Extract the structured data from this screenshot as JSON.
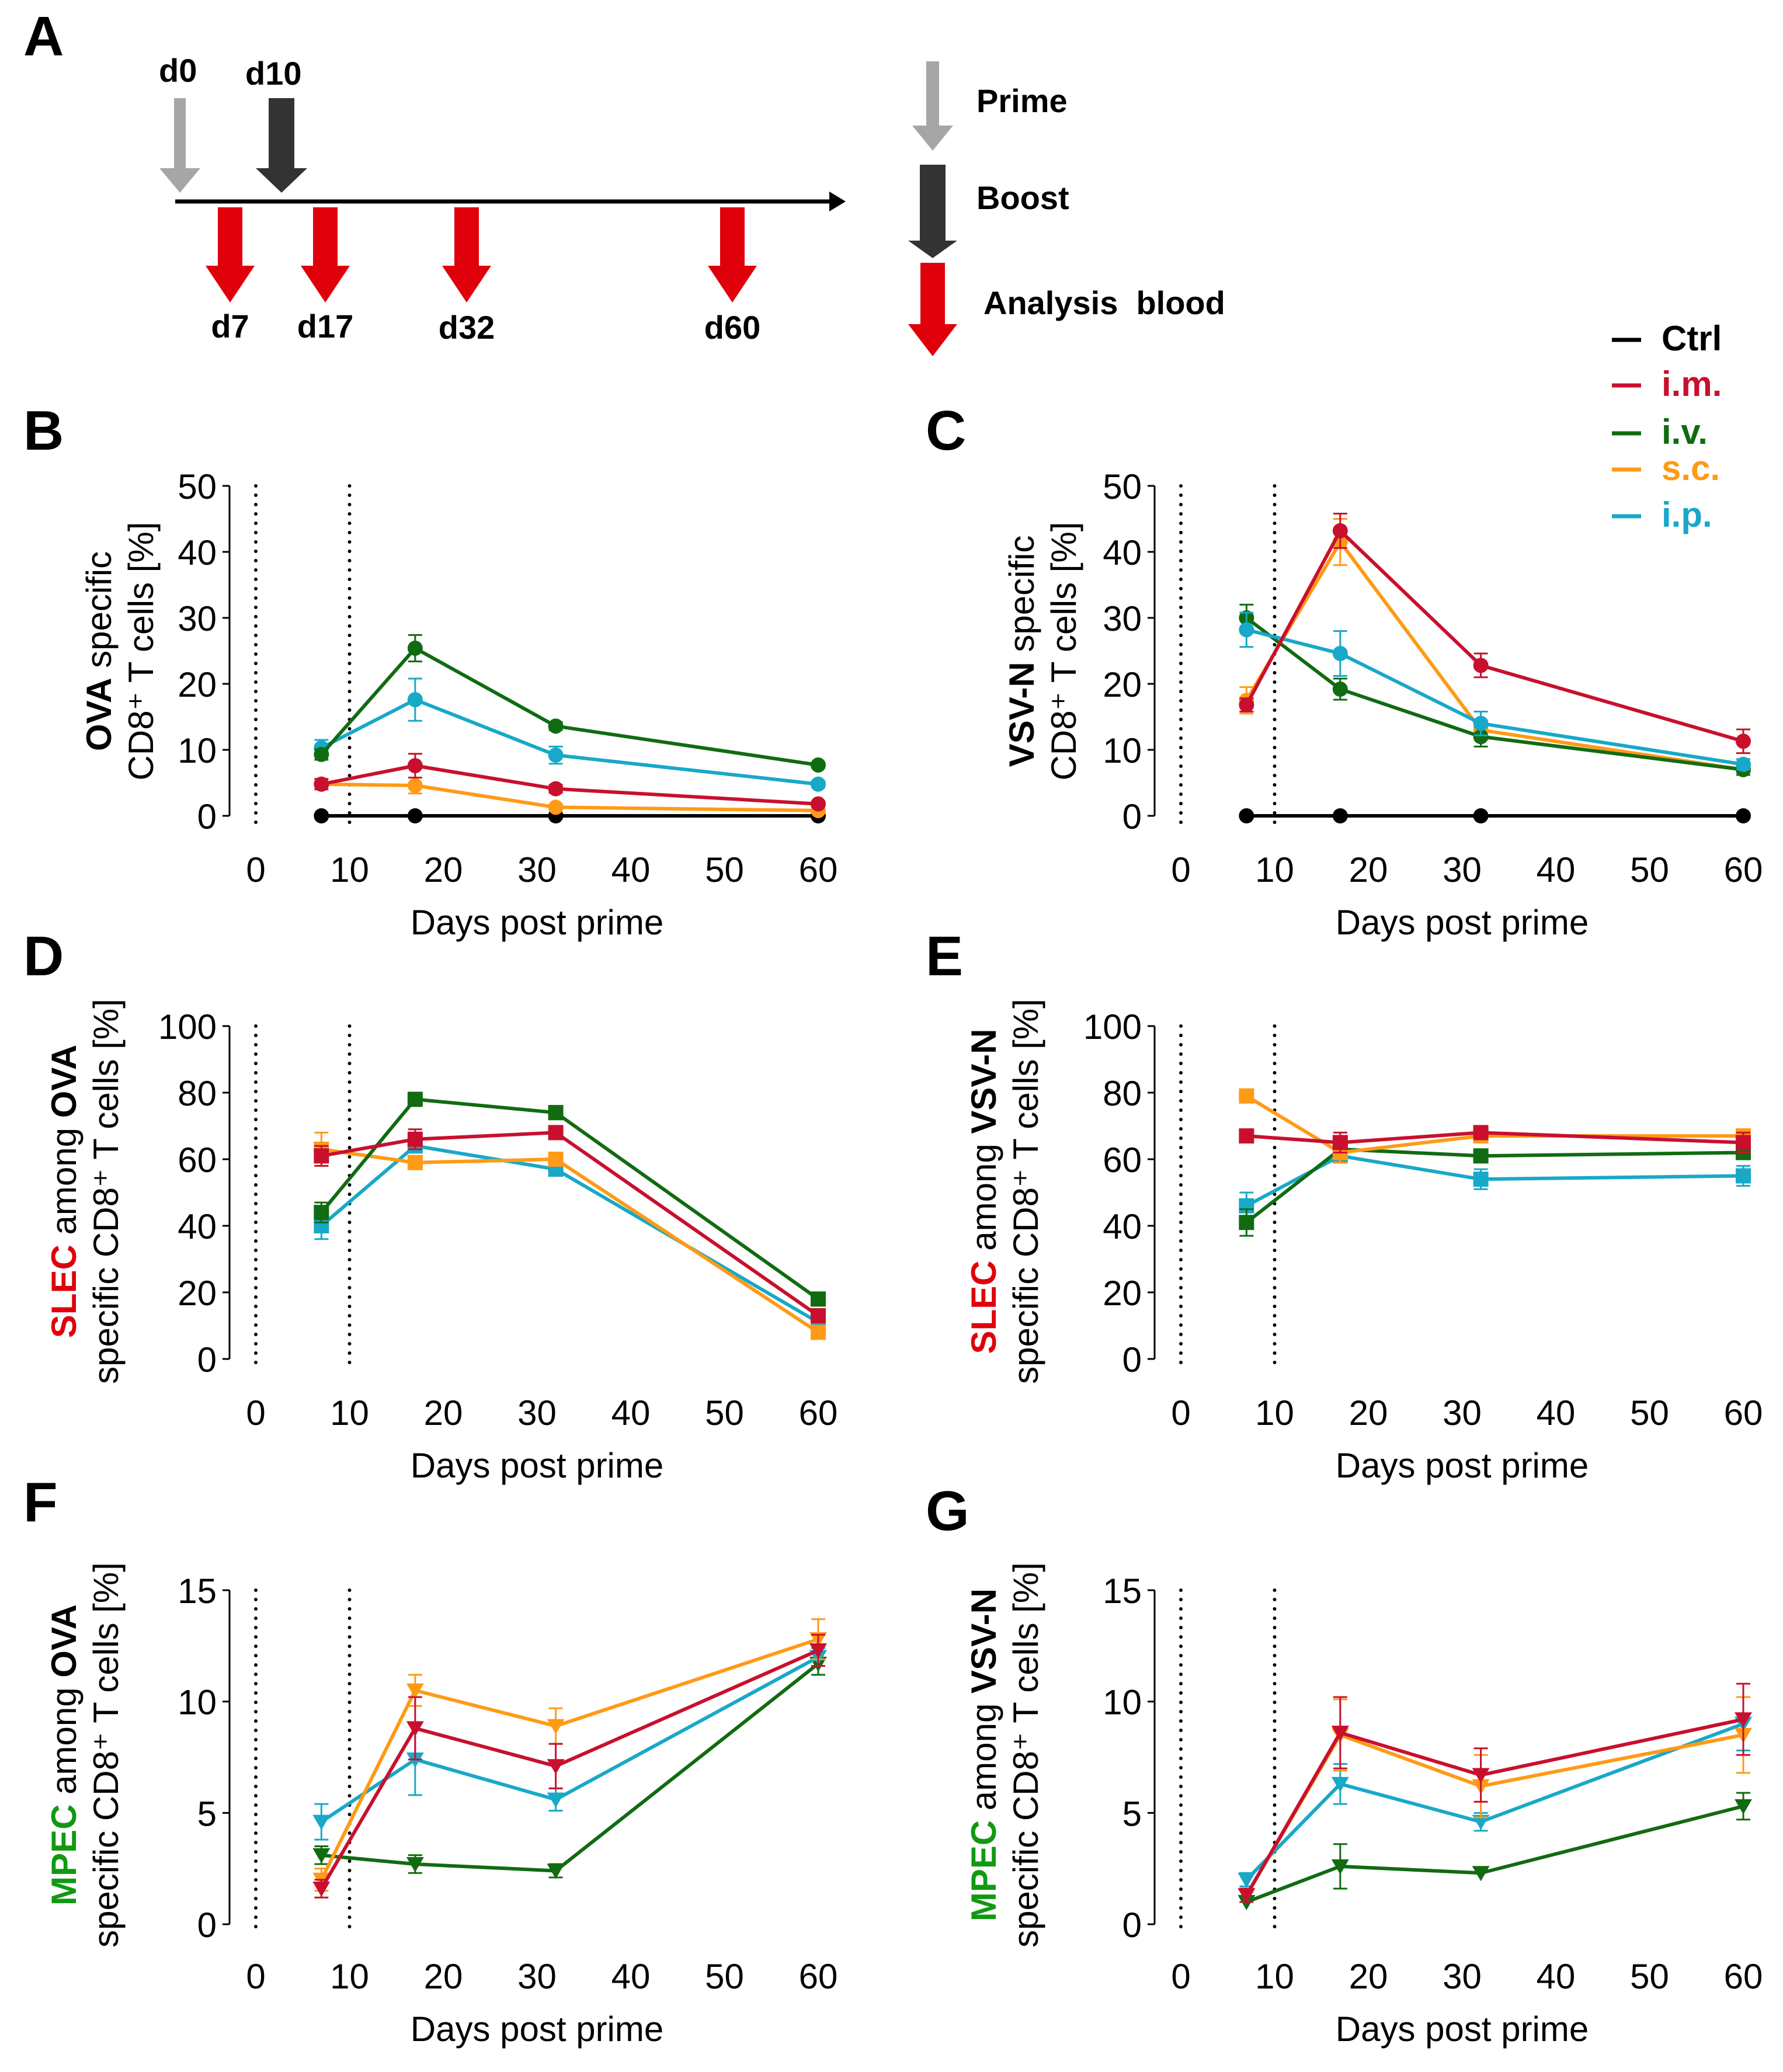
{
  "colors": {
    "ctrl": "#000000",
    "im": "#c8102e",
    "iv": "#116b11",
    "sc": "#ff9a16",
    "ip": "#18a8c8",
    "prime_arrow": "#a6a6a6",
    "boost_arrow": "#333333",
    "analysis_arrow": "#e0000b",
    "slec_text": "#e0000b",
    "mpec_text": "#119911"
  },
  "panel_a": {
    "label": "A",
    "top_days": [
      "d0",
      "d10"
    ],
    "bottom_days": [
      "d7",
      "d17",
      "d32",
      "d60"
    ],
    "legend": {
      "prime": "Prime",
      "boost": "Boost",
      "analysis": "Analysis  blood"
    }
  },
  "legend": {
    "items": [
      {
        "key": "ctrl",
        "label": "Ctrl"
      },
      {
        "key": "im",
        "label": "i.m."
      },
      {
        "key": "iv",
        "label": "i.v."
      },
      {
        "key": "sc",
        "label": "s.c."
      },
      {
        "key": "ip",
        "label": "i.p."
      }
    ]
  },
  "chart_data": [
    {
      "panel": "B",
      "type": "line",
      "marker": "circle",
      "xlabel": "Days post prime",
      "ylabel_bold": "OVA",
      "ylabel_rest": " specific",
      "ylabel_line2": "CD8⁺ T cells [%]",
      "xlim": [
        0,
        60
      ],
      "ylim": [
        0,
        50
      ],
      "xticks": [
        0,
        10,
        20,
        30,
        40,
        50,
        60
      ],
      "yticks": [
        0,
        10,
        20,
        30,
        40,
        50
      ],
      "vlines": [
        0,
        10
      ],
      "x": [
        7,
        17,
        32,
        60
      ],
      "series": [
        {
          "key": "ctrl",
          "name": "Ctrl",
          "values": [
            0,
            0,
            0,
            0
          ],
          "err": [
            0.3,
            0.3,
            0.3,
            0.3
          ]
        },
        {
          "key": "sc",
          "name": "s.c.",
          "values": [
            4.8,
            4.6,
            1.3,
            0.8
          ],
          "err": [
            0.8,
            1.2,
            0.4,
            0.3
          ]
        },
        {
          "key": "im",
          "name": "i.m.",
          "values": [
            4.8,
            7.6,
            4.1,
            1.8
          ],
          "err": [
            0.8,
            1.8,
            0.6,
            0.4
          ]
        },
        {
          "key": "ip",
          "name": "i.p.",
          "values": [
            10.3,
            17.6,
            9.2,
            4.8
          ],
          "err": [
            1.2,
            3.2,
            1.3,
            0.5
          ]
        },
        {
          "key": "iv",
          "name": "i.v.",
          "values": [
            9.3,
            25.4,
            13.6,
            7.7
          ],
          "err": [
            0.8,
            2.0,
            0.6,
            0.4
          ]
        }
      ]
    },
    {
      "panel": "C",
      "type": "line",
      "marker": "circle",
      "xlabel": "Days post prime",
      "ylabel_bold": "VSV-N",
      "ylabel_rest": " specific",
      "ylabel_line2": "CD8⁺ T cells [%]",
      "xlim": [
        0,
        60
      ],
      "ylim": [
        0,
        50
      ],
      "xticks": [
        0,
        10,
        20,
        30,
        40,
        50,
        60
      ],
      "yticks": [
        0,
        10,
        20,
        30,
        40,
        50
      ],
      "vlines": [
        0,
        10
      ],
      "x": [
        7,
        17,
        32,
        60
      ],
      "series": [
        {
          "key": "ctrl",
          "name": "Ctrl",
          "values": [
            0,
            0,
            0,
            0
          ],
          "err": [
            0.3,
            0.3,
            0.3,
            0.3
          ]
        },
        {
          "key": "sc",
          "name": "s.c.",
          "values": [
            17.5,
            41.5,
            13.0,
            7.0
          ],
          "err": [
            2.0,
            3.5,
            1.5,
            0.8
          ]
        },
        {
          "key": "iv",
          "name": "i.v.",
          "values": [
            30.0,
            19.2,
            12.0,
            7.0
          ],
          "err": [
            2.0,
            1.6,
            1.5,
            0.8
          ]
        },
        {
          "key": "ip",
          "name": "i.p.",
          "values": [
            28.2,
            24.6,
            14.0,
            7.8
          ],
          "err": [
            2.6,
            3.4,
            1.8,
            0.8
          ]
        },
        {
          "key": "im",
          "name": "i.m.",
          "values": [
            16.8,
            43.2,
            22.8,
            11.3
          ],
          "err": [
            1.0,
            2.6,
            1.8,
            1.8
          ]
        }
      ]
    },
    {
      "panel": "D",
      "type": "line",
      "marker": "square",
      "xlabel": "Days post prime",
      "ylabel_colored": "SLEC",
      "colored_key": "slec_text",
      "ylabel_mid": " among ",
      "ylabel_bold": "OVA",
      "ylabel_line2": "specific CD8⁺ T cells [%]",
      "xlim": [
        0,
        60
      ],
      "ylim": [
        0,
        100
      ],
      "xticks": [
        0,
        10,
        20,
        30,
        40,
        50,
        60
      ],
      "yticks": [
        0,
        20,
        40,
        60,
        80,
        100
      ],
      "vlines": [
        0,
        10
      ],
      "x": [
        7,
        17,
        32,
        60
      ],
      "series": [
        {
          "key": "ip",
          "name": "i.p.",
          "values": [
            40,
            64,
            57,
            11
          ],
          "err": [
            4,
            2,
            2,
            1
          ]
        },
        {
          "key": "sc",
          "name": "s.c.",
          "values": [
            63,
            59,
            60,
            8
          ],
          "err": [
            5,
            2,
            2,
            1
          ]
        },
        {
          "key": "iv",
          "name": "i.v.",
          "values": [
            44,
            78,
            74,
            18
          ],
          "err": [
            3,
            1,
            2,
            1
          ]
        },
        {
          "key": "im",
          "name": "i.m.",
          "values": [
            61,
            66,
            68,
            13
          ],
          "err": [
            3,
            3,
            2,
            1
          ]
        }
      ]
    },
    {
      "panel": "E",
      "type": "line",
      "marker": "square",
      "xlabel": "Days post prime",
      "ylabel_colored": "SLEC",
      "colored_key": "slec_text",
      "ylabel_mid": " among ",
      "ylabel_bold": "VSV-N",
      "ylabel_line2": "specific CD8⁺ T cells [%]",
      "xlim": [
        0,
        60
      ],
      "ylim": [
        0,
        100
      ],
      "xticks": [
        0,
        10,
        20,
        30,
        40,
        50,
        60
      ],
      "yticks": [
        0,
        20,
        40,
        60,
        80,
        100
      ],
      "vlines": [
        0,
        10
      ],
      "x": [
        7,
        17,
        32,
        60
      ],
      "series": [
        {
          "key": "ip",
          "name": "i.p.",
          "values": [
            46,
            61,
            54,
            55
          ],
          "err": [
            4,
            2,
            3,
            3
          ]
        },
        {
          "key": "iv",
          "name": "i.v.",
          "values": [
            41,
            63,
            61,
            62
          ],
          "err": [
            4,
            2,
            1,
            1
          ]
        },
        {
          "key": "sc",
          "name": "s.c.",
          "values": [
            79,
            62,
            67,
            67
          ],
          "err": [
            2,
            3,
            2,
            2
          ]
        },
        {
          "key": "im",
          "name": "i.m.",
          "values": [
            67,
            65,
            68,
            65
          ],
          "err": [
            1,
            3,
            2,
            3
          ]
        }
      ]
    },
    {
      "panel": "F",
      "type": "line",
      "marker": "triangle-down",
      "xlabel": "Days post prime",
      "ylabel_colored": "MPEC",
      "colored_key": "mpec_text",
      "ylabel_mid": " among ",
      "ylabel_bold": "OVA",
      "ylabel_line2": "specific CD8⁺ T cells [%]",
      "xlim": [
        0,
        60
      ],
      "ylim": [
        0,
        15
      ],
      "xticks": [
        0,
        10,
        20,
        30,
        40,
        50,
        60
      ],
      "yticks": [
        0,
        5,
        10,
        15
      ],
      "vlines": [
        0,
        10
      ],
      "x": [
        7,
        17,
        32,
        60
      ],
      "series": [
        {
          "key": "iv",
          "name": "i.v.",
          "values": [
            3.1,
            2.7,
            2.4,
            11.7
          ],
          "err": [
            0.4,
            0.4,
            0.3,
            0.5
          ]
        },
        {
          "key": "ip",
          "name": "i.p.",
          "values": [
            4.6,
            7.4,
            5.6,
            12.0
          ],
          "err": [
            0.8,
            1.6,
            0.5,
            0.4
          ]
        },
        {
          "key": "sc",
          "name": "s.c.",
          "values": [
            2.0,
            10.5,
            8.9,
            12.8
          ],
          "err": [
            0.5,
            0.7,
            0.8,
            0.9
          ]
        },
        {
          "key": "im",
          "name": "i.m.",
          "values": [
            1.6,
            8.8,
            7.1,
            12.3
          ],
          "err": [
            0.4,
            1.4,
            1.0,
            0.7
          ]
        }
      ]
    },
    {
      "panel": "G",
      "type": "line",
      "marker": "triangle-down",
      "xlabel": "Days post prime",
      "ylabel_colored": "MPEC",
      "colored_key": "mpec_text",
      "ylabel_mid": " among ",
      "ylabel_bold": "VSV-N",
      "ylabel_line2": "specific CD8⁺ T cells [%]",
      "xlim": [
        0,
        60
      ],
      "ylim": [
        0,
        15
      ],
      "xticks": [
        0,
        10,
        20,
        30,
        40,
        50,
        60
      ],
      "yticks": [
        0,
        5,
        10,
        15
      ],
      "vlines": [
        0,
        10
      ],
      "x": [
        7,
        17,
        32,
        60
      ],
      "series": [
        {
          "key": "iv",
          "name": "i.v.",
          "values": [
            1.0,
            2.6,
            2.3,
            5.3
          ],
          "err": [
            0.2,
            1.0,
            0.2,
            0.6
          ]
        },
        {
          "key": "ip",
          "name": "i.p.",
          "values": [
            2.0,
            6.3,
            4.6,
            9.0
          ],
          "err": [
            0.3,
            0.9,
            0.4,
            1.2
          ]
        },
        {
          "key": "sc",
          "name": "s.c.",
          "values": [
            1.3,
            8.5,
            6.2,
            8.5
          ],
          "err": [
            0.2,
            1.6,
            1.4,
            1.7
          ]
        },
        {
          "key": "im",
          "name": "i.m.",
          "values": [
            1.3,
            8.6,
            6.7,
            9.2
          ],
          "err": [
            0.3,
            1.6,
            1.2,
            1.6
          ]
        }
      ]
    }
  ]
}
